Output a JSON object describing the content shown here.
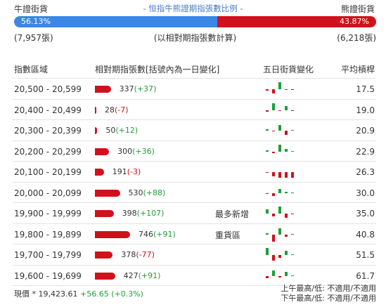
{
  "header": {
    "bull_label": "牛證街貨",
    "bear_label": "熊證街貨",
    "title": "- 恒指牛熊證期指張數比例 -",
    "bull_pct": "56.13%",
    "bear_pct": "43.87%",
    "bull_fraction": 0.5613,
    "bull_count": "(7,957張)",
    "center_note": "(以相對期指張數計算)",
    "bear_count": "(6,218張)"
  },
  "colors": {
    "bull": "#3b87e6",
    "bear": "#d0111b",
    "up": "#1e9e39",
    "down": "#d0111b"
  },
  "table": {
    "headers": {
      "range": "指數區域",
      "contracts": "相對期指張數[括號內為一日變化]",
      "five_day": "五日街貨變化",
      "avg": "平均槓桿"
    },
    "max_contracts": 746,
    "rows": [
      {
        "range": "20,500 - 20,599",
        "contracts": 337,
        "value": "337",
        "change": "(+37)",
        "dir": "up",
        "note": "",
        "avg": "17.5",
        "five": [
          -2,
          -6,
          10,
          -1,
          -0.3
        ]
      },
      {
        "range": "20,400 - 20,499",
        "contracts": 28,
        "value": "28",
        "change": "(-7)",
        "dir": "down",
        "note": "",
        "avg": "19.0",
        "five": [
          -2,
          10,
          -0.5,
          6,
          -0.3
        ]
      },
      {
        "range": "20,300 - 20,399",
        "contracts": 50,
        "value": "50",
        "change": "(+12)",
        "dir": "up",
        "note": "",
        "avg": "20.9",
        "five": [
          2,
          -1,
          8,
          -6,
          0.5
        ]
      },
      {
        "range": "20,200 - 20,299",
        "contracts": 300,
        "value": "300",
        "change": "(+36)",
        "dir": "up",
        "note": "",
        "avg": "22.9",
        "five": [
          2,
          -2,
          10,
          4,
          0.3
        ]
      },
      {
        "range": "20,100 - 20,199",
        "contracts": 191,
        "value": "191",
        "change": "(-3)",
        "dir": "down",
        "note": "",
        "avg": "26.3",
        "five": [
          -1,
          -6,
          -8,
          -8,
          -8
        ]
      },
      {
        "range": "20,000 - 20,099",
        "contracts": 530,
        "value": "530",
        "change": "(+88)",
        "dir": "up",
        "note": "",
        "avg": "30.0",
        "five": [
          -1,
          -4,
          6,
          2,
          0.3
        ]
      },
      {
        "range": "19,900 - 19,999",
        "contracts": 398,
        "value": "398",
        "change": "(+107)",
        "dir": "up",
        "note": "最多新增",
        "avg": "35.0",
        "five": [
          6,
          -4,
          10,
          -6,
          -0.5
        ]
      },
      {
        "range": "19,800 - 19,899",
        "contracts": 746,
        "value": "746",
        "change": "(+91)",
        "dir": "up",
        "note": "重貨區",
        "avg": "40.8",
        "five": [
          2,
          -10,
          9,
          -3,
          0.3
        ]
      },
      {
        "range": "19,700 - 19,799",
        "contracts": 378,
        "value": "378",
        "change": "(-77)",
        "dir": "down",
        "note": "",
        "avg": "51.5",
        "five": [
          10,
          -8,
          -4,
          6,
          0.3
        ]
      },
      {
        "range": "19,600 - 19,699",
        "contracts": 427,
        "value": "427",
        "change": "(+91)",
        "dir": "up",
        "note": "",
        "avg": "61.7",
        "five": [
          -3,
          8,
          -2,
          6,
          0.3
        ]
      }
    ]
  },
  "footer": {
    "spot_label": "現價 *",
    "spot_value": "19,423.61",
    "spot_change": "+56.65 (+0.3%)",
    "am_hl": "上午最高/低: 不適用/不適用",
    "pm_hl": "下午最高/低: 不適用/不適用"
  }
}
